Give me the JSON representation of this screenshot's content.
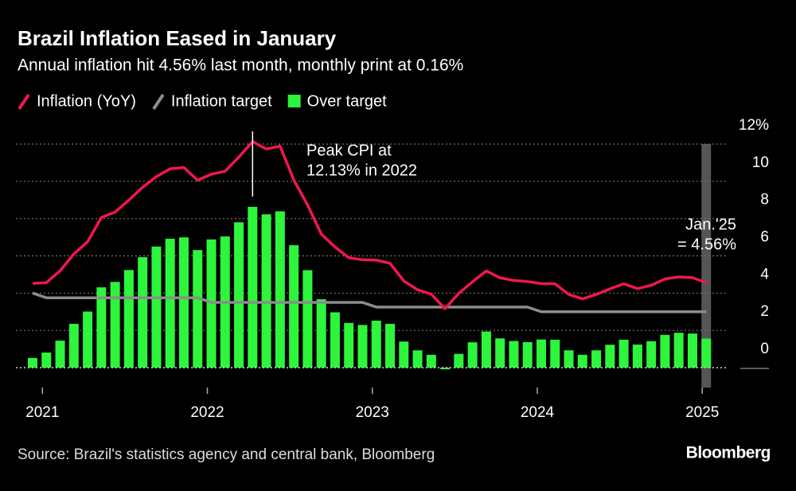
{
  "chart_data": {
    "type": "combo",
    "title": "Brazil Inflation Eased in January",
    "subtitle": "Annual inflation hit 4.56% last month, monthly print at 0.16%",
    "source": "Source: Brazil's statistics agency and central bank, Bloomberg",
    "brand": "Bloomberg",
    "categories": [
      null,
      "2021",
      null,
      null,
      null,
      null,
      null,
      null,
      null,
      null,
      null,
      null,
      null,
      "2022",
      null,
      null,
      null,
      null,
      null,
      null,
      null,
      null,
      null,
      null,
      null,
      "2023",
      null,
      null,
      null,
      null,
      null,
      null,
      null,
      null,
      null,
      null,
      null,
      "2024",
      null,
      null,
      null,
      null,
      null,
      null,
      null,
      null,
      null,
      null,
      null,
      "2025"
    ],
    "series": [
      {
        "name": "Inflation (YoY)",
        "type": "line",
        "color": "#f0174d",
        "values": [
          4.52,
          4.56,
          5.2,
          6.1,
          6.76,
          8.06,
          8.35,
          8.99,
          9.68,
          10.25,
          10.67,
          10.74,
          10.06,
          10.38,
          10.54,
          11.3,
          12.13,
          11.73,
          11.89,
          10.07,
          8.73,
          7.17,
          6.47,
          5.9,
          5.79,
          5.77,
          5.6,
          4.65,
          4.18,
          3.94,
          3.16,
          3.99,
          4.61,
          5.19,
          4.82,
          4.68,
          4.62,
          4.51,
          4.5,
          3.93,
          3.69,
          3.93,
          4.23,
          4.5,
          4.24,
          4.42,
          4.76,
          4.87,
          4.83,
          4.56
        ]
      },
      {
        "name": "Inflation target",
        "type": "line",
        "color": "#8c8c8c",
        "values": [
          4.0,
          3.75,
          3.75,
          3.75,
          3.75,
          3.75,
          3.75,
          3.75,
          3.75,
          3.75,
          3.75,
          3.75,
          3.75,
          3.5,
          3.5,
          3.5,
          3.5,
          3.5,
          3.5,
          3.5,
          3.5,
          3.5,
          3.5,
          3.5,
          3.5,
          3.25,
          3.25,
          3.25,
          3.25,
          3.25,
          3.25,
          3.25,
          3.25,
          3.25,
          3.25,
          3.25,
          3.25,
          3.0,
          3.0,
          3.0,
          3.0,
          3.0,
          3.0,
          3.0,
          3.0,
          3.0,
          3.0,
          3.0,
          3.0,
          3.0
        ]
      },
      {
        "name": "Over target",
        "type": "bar",
        "color": "#2cf53c",
        "values": [
          0.52,
          0.81,
          1.45,
          2.35,
          3.01,
          4.31,
          4.6,
          5.24,
          5.93,
          6.5,
          6.92,
          6.99,
          6.31,
          6.88,
          7.04,
          7.8,
          8.63,
          8.23,
          8.39,
          6.57,
          5.23,
          3.67,
          2.97,
          2.4,
          2.29,
          2.52,
          2.35,
          1.4,
          0.93,
          0.69,
          -0.09,
          0.74,
          1.36,
          1.94,
          1.57,
          1.43,
          1.37,
          1.51,
          1.5,
          0.93,
          0.69,
          0.93,
          1.23,
          1.5,
          1.24,
          1.42,
          1.76,
          1.87,
          1.83,
          1.56
        ]
      }
    ],
    "ylim": [
      0,
      12
    ],
    "yticks": [
      0,
      2,
      4,
      6,
      8,
      10,
      {
        "value": 12,
        "label": "12%"
      }
    ],
    "grid": true,
    "annotations": [
      {
        "lines": [
          "Peak CPI at",
          "12.13% in 2022"
        ]
      },
      {
        "lines": [
          "Jan.'25",
          "= 4.56%"
        ]
      }
    ]
  }
}
